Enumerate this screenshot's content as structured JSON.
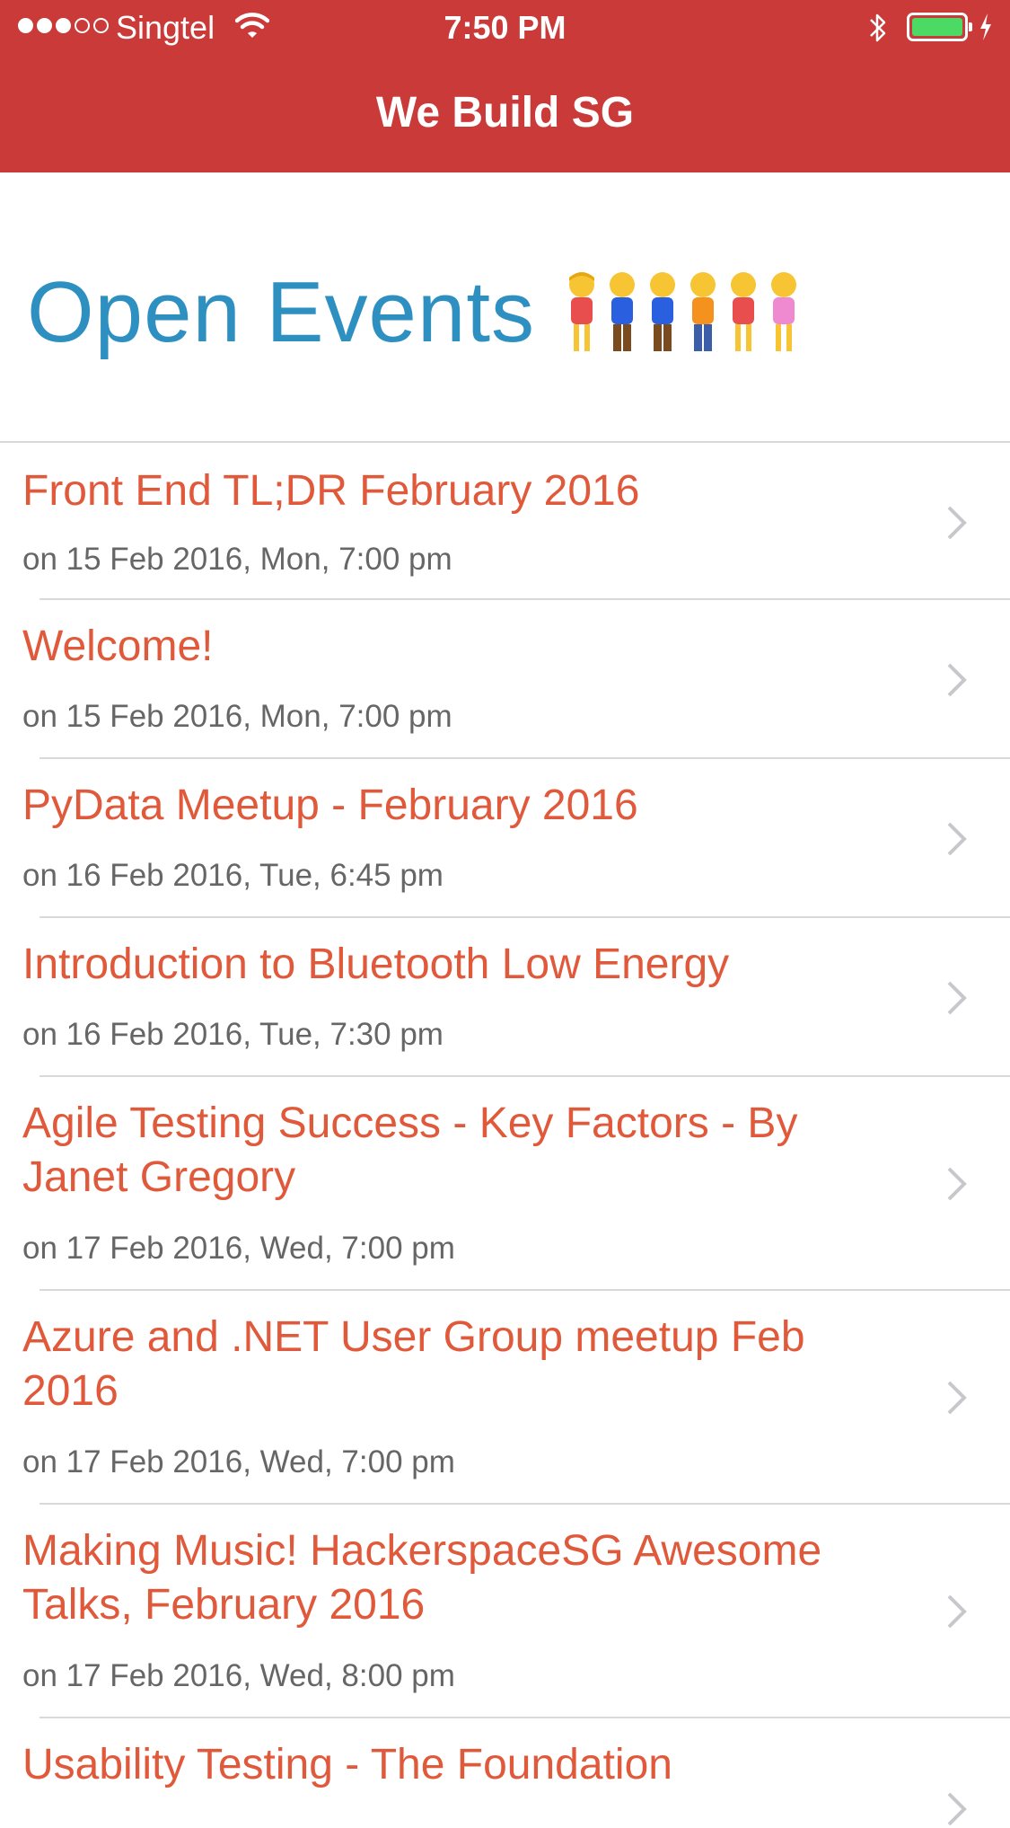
{
  "status_bar": {
    "carrier": "Singtel",
    "time": "7:50 PM",
    "battery_color": "#4cd964"
  },
  "nav": {
    "title": "We Build SG",
    "bar_color": "#c93a39"
  },
  "page": {
    "heading": "Open Events",
    "heading_color": "#2e8fc1",
    "heading_emoji_icon": "people-holding-hands-icon"
  },
  "events": [
    {
      "title": "Front End TL;DR February 2016",
      "date": "on 15 Feb 2016, Mon, 7:00 pm"
    },
    {
      "title": "Welcome!",
      "date": "on 15 Feb 2016, Mon, 7:00 pm"
    },
    {
      "title": "PyData Meetup - February 2016",
      "date": "on 16 Feb 2016, Tue, 6:45 pm"
    },
    {
      "title": "Introduction to Bluetooth Low Energy",
      "date": "on 16 Feb 2016, Tue, 7:30 pm"
    },
    {
      "title": "Agile Testing Success - Key Factors - By Janet Gregory",
      "date": "on 17 Feb 2016, Wed, 7:00 pm"
    },
    {
      "title": "Azure and .NET User Group meetup Feb 2016",
      "date": "on 17 Feb 2016, Wed, 7:00 pm"
    },
    {
      "title": "Making Music! HackerspaceSG Awesome Talks, February 2016",
      "date": "on 17 Feb 2016, Wed, 8:00 pm"
    },
    {
      "title": "Usability Testing -  The Foundation",
      "date": ""
    }
  ],
  "colors": {
    "event_title": "#e0593b",
    "event_date": "#666666",
    "separator": "#d9d9d9"
  }
}
